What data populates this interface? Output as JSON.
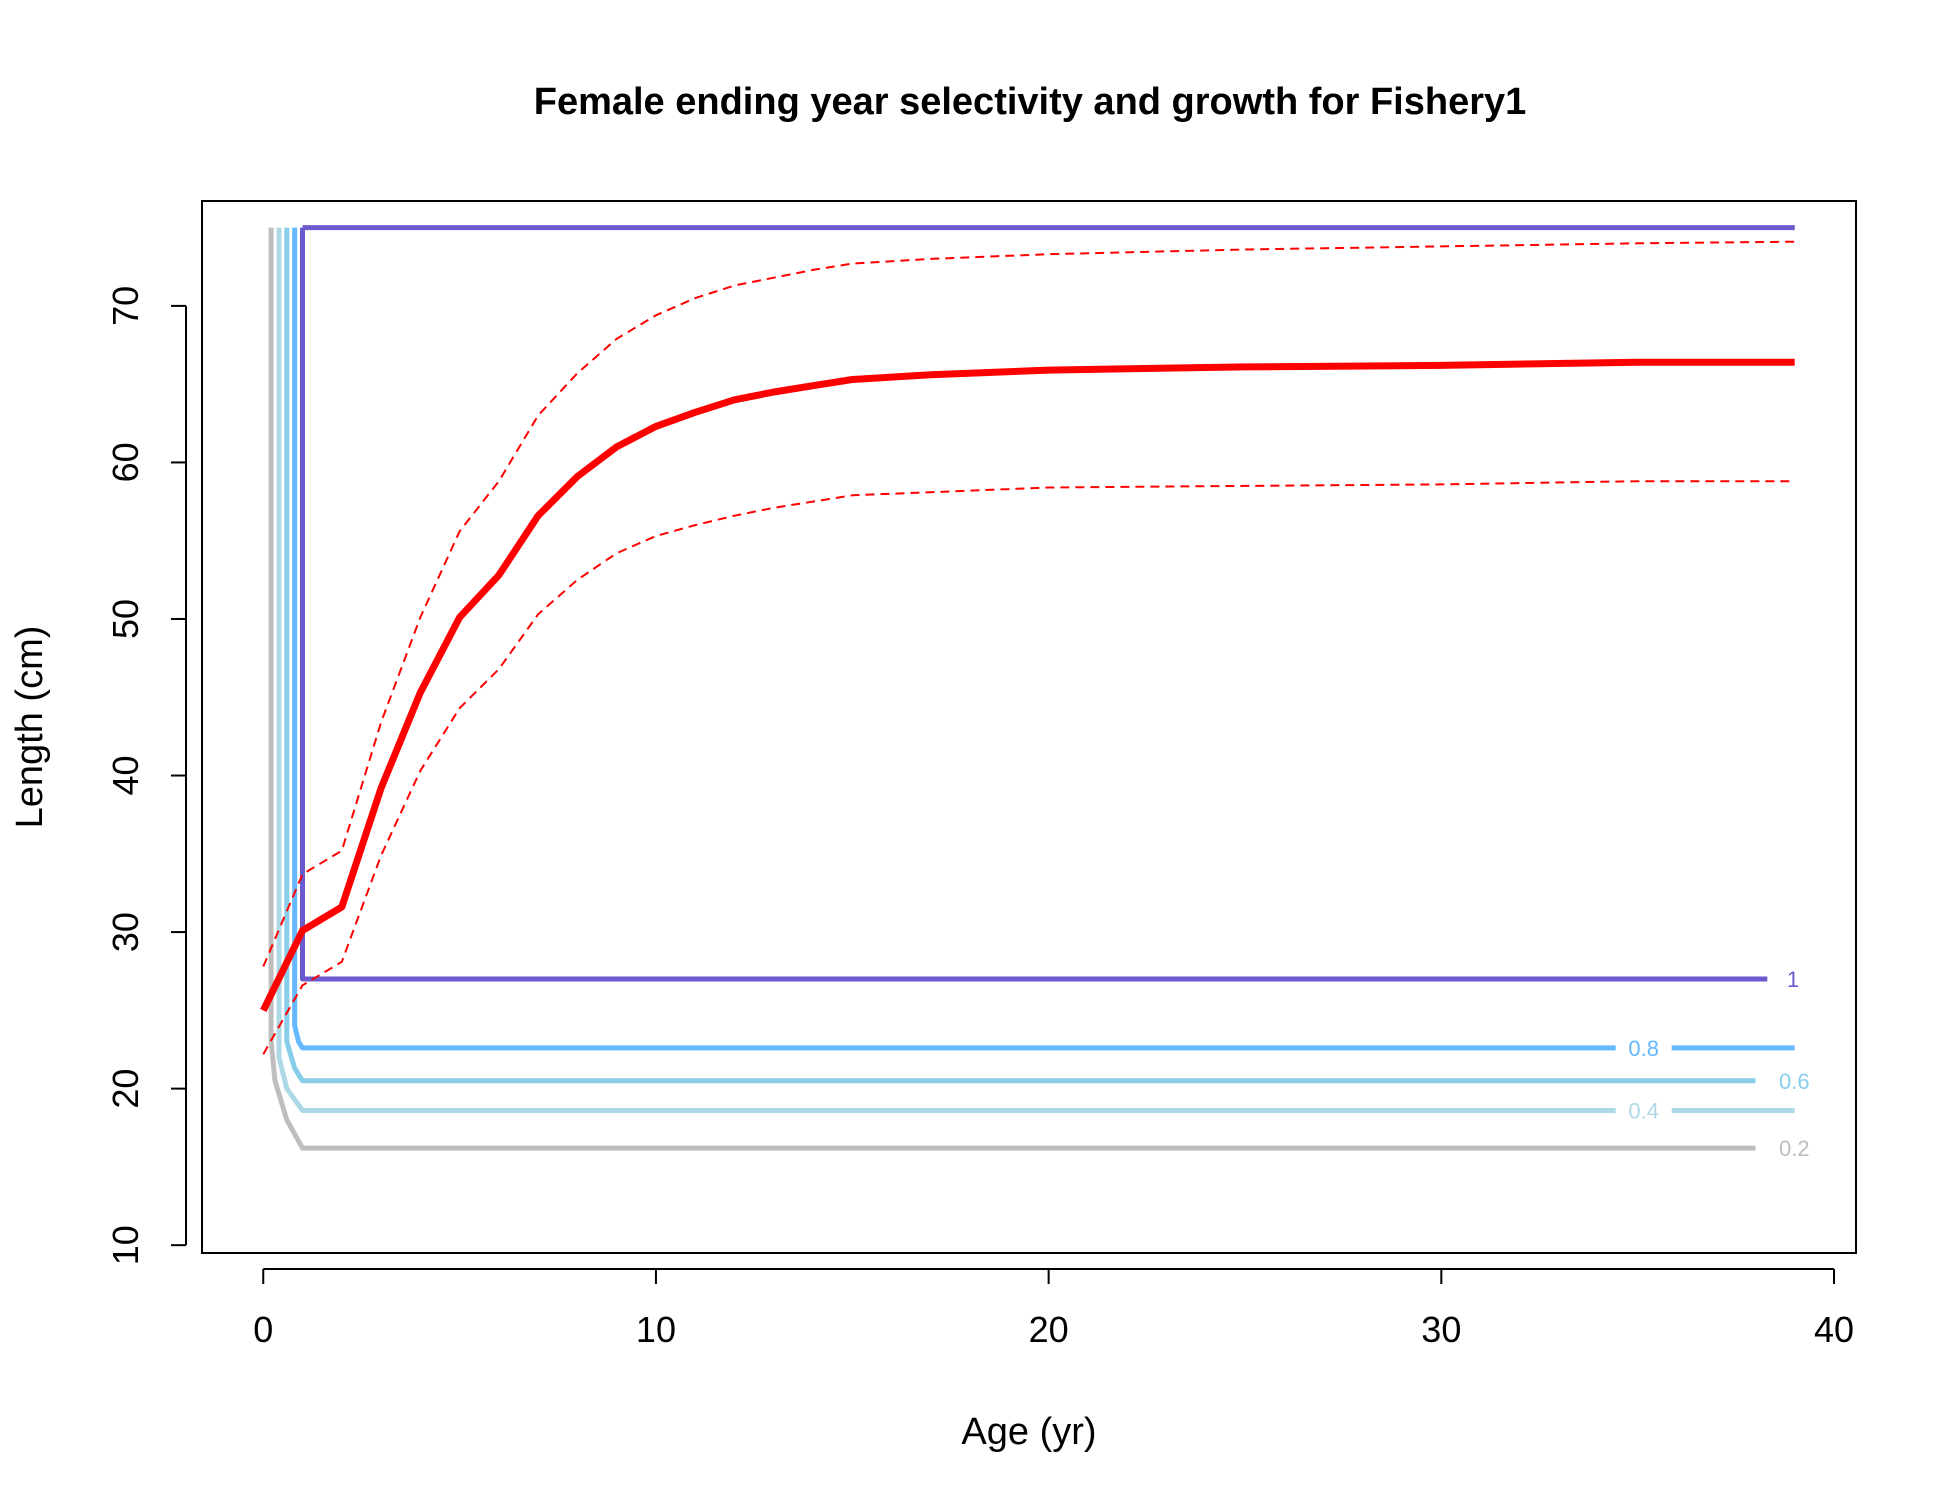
{
  "chart_data": {
    "type": "line",
    "title": "Female ending year selectivity and growth for Fishery1",
    "xlabel": "Age (yr)",
    "ylabel": "Length (cm)",
    "xlim": [
      -1.56,
      40.56
    ],
    "ylim": [
      9.5,
      76.7
    ],
    "x_ticks": [
      0,
      10,
      20,
      30,
      40
    ],
    "y_ticks": [
      10,
      20,
      30,
      40,
      50,
      60,
      70
    ],
    "x_tick_labels": [
      "0",
      "10",
      "20",
      "30",
      "40"
    ],
    "y_tick_labels": [
      "10",
      "20",
      "30",
      "40",
      "50",
      "60",
      "70"
    ],
    "grid": false,
    "legend": "none",
    "series": [
      {
        "role": "mean",
        "color": "#ff0000",
        "dashed": false,
        "points": [
          [
            0,
            25.0
          ],
          [
            1,
            30.1
          ],
          [
            2,
            31.6
          ],
          [
            3,
            39.2
          ],
          [
            4,
            45.3
          ],
          [
            5,
            50.1
          ],
          [
            6,
            52.8
          ],
          [
            7,
            56.6
          ],
          [
            8,
            59.1
          ],
          [
            9,
            61.0
          ],
          [
            10,
            62.3
          ],
          [
            11,
            63.2
          ],
          [
            12,
            64.0
          ],
          [
            13,
            64.5
          ],
          [
            14,
            64.9
          ],
          [
            15,
            65.3
          ],
          [
            17,
            65.6
          ],
          [
            20,
            65.9
          ],
          [
            25,
            66.1
          ],
          [
            30,
            66.2
          ],
          [
            35,
            66.4
          ],
          [
            39,
            66.4
          ]
        ]
      },
      {
        "role": "upper",
        "color": "#ff0000",
        "dashed": true,
        "points": [
          [
            0,
            27.8
          ],
          [
            1,
            33.7
          ],
          [
            2,
            35.2
          ],
          [
            3,
            43.4
          ],
          [
            4,
            50.1
          ],
          [
            5,
            55.6
          ],
          [
            6,
            58.8
          ],
          [
            7,
            63.0
          ],
          [
            8,
            65.7
          ],
          [
            9,
            67.9
          ],
          [
            10,
            69.4
          ],
          [
            11,
            70.5
          ],
          [
            12,
            71.3
          ],
          [
            13,
            71.8
          ],
          [
            14,
            72.3
          ],
          [
            15,
            72.7
          ],
          [
            17,
            73.0
          ],
          [
            20,
            73.3
          ],
          [
            25,
            73.6
          ],
          [
            30,
            73.8
          ],
          [
            35,
            74.0
          ],
          [
            39,
            74.1
          ]
        ]
      },
      {
        "role": "lower",
        "color": "#ff0000",
        "dashed": true,
        "points": [
          [
            0,
            22.2
          ],
          [
            1,
            26.6
          ],
          [
            2,
            28.1
          ],
          [
            3,
            34.9
          ],
          [
            4,
            40.3
          ],
          [
            5,
            44.3
          ],
          [
            6,
            46.8
          ],
          [
            7,
            50.3
          ],
          [
            8,
            52.5
          ],
          [
            9,
            54.2
          ],
          [
            10,
            55.3
          ],
          [
            11,
            56.0
          ],
          [
            12,
            56.6
          ],
          [
            13,
            57.1
          ],
          [
            14,
            57.5
          ],
          [
            15,
            57.9
          ],
          [
            17,
            58.1
          ],
          [
            20,
            58.4
          ],
          [
            25,
            58.5
          ],
          [
            30,
            58.6
          ],
          [
            35,
            58.8
          ],
          [
            39,
            58.8
          ]
        ]
      }
    ],
    "contours": [
      {
        "level": "0.2",
        "color": "#bebebe",
        "x_left": 0.2,
        "y_bottom": 16.2,
        "x_end": 38.0,
        "label_x": 38.6,
        "label_pos": "end",
        "curve": [
          [
            0.2,
            75
          ],
          [
            0.2,
            23
          ],
          [
            0.3,
            20.5
          ],
          [
            0.6,
            18.0
          ],
          [
            1.0,
            16.2
          ]
        ]
      },
      {
        "level": "0.4",
        "color": "#add8e6",
        "x_left": 0.4,
        "y_bottom": 18.6,
        "x_end": 39.0,
        "label_x": 35.0,
        "label_pos": "inline",
        "curve": [
          [
            0.4,
            75
          ],
          [
            0.4,
            22
          ],
          [
            0.6,
            20.0
          ],
          [
            1.0,
            18.6
          ]
        ]
      },
      {
        "level": "0.6",
        "color": "#87ceeb",
        "x_left": 0.6,
        "y_bottom": 20.5,
        "x_end": 38.0,
        "label_x": 38.6,
        "label_pos": "end",
        "curve": [
          [
            0.6,
            75
          ],
          [
            0.6,
            23
          ],
          [
            0.8,
            21.3
          ],
          [
            1.0,
            20.5
          ]
        ]
      },
      {
        "level": "0.8",
        "color": "#63b8ff",
        "x_left": 0.8,
        "y_bottom": 22.6,
        "x_end": 39.0,
        "label_x": 35.0,
        "label_pos": "inline",
        "curve": [
          [
            0.8,
            75
          ],
          [
            0.8,
            24
          ],
          [
            0.9,
            23.0
          ],
          [
            1.0,
            22.6
          ]
        ]
      },
      {
        "level": "1",
        "color": "#6a5acd",
        "x_left": 1.0,
        "y_bottom": 27.0,
        "x_end": 38.3,
        "label_x": 38.8,
        "label_pos": "end",
        "curve": [
          [
            1.0,
            75
          ],
          [
            1.0,
            27.0
          ]
        ]
      }
    ],
    "top_line": {
      "y": 75.0,
      "x_end": 39.0,
      "color": "#6a5acd"
    }
  }
}
